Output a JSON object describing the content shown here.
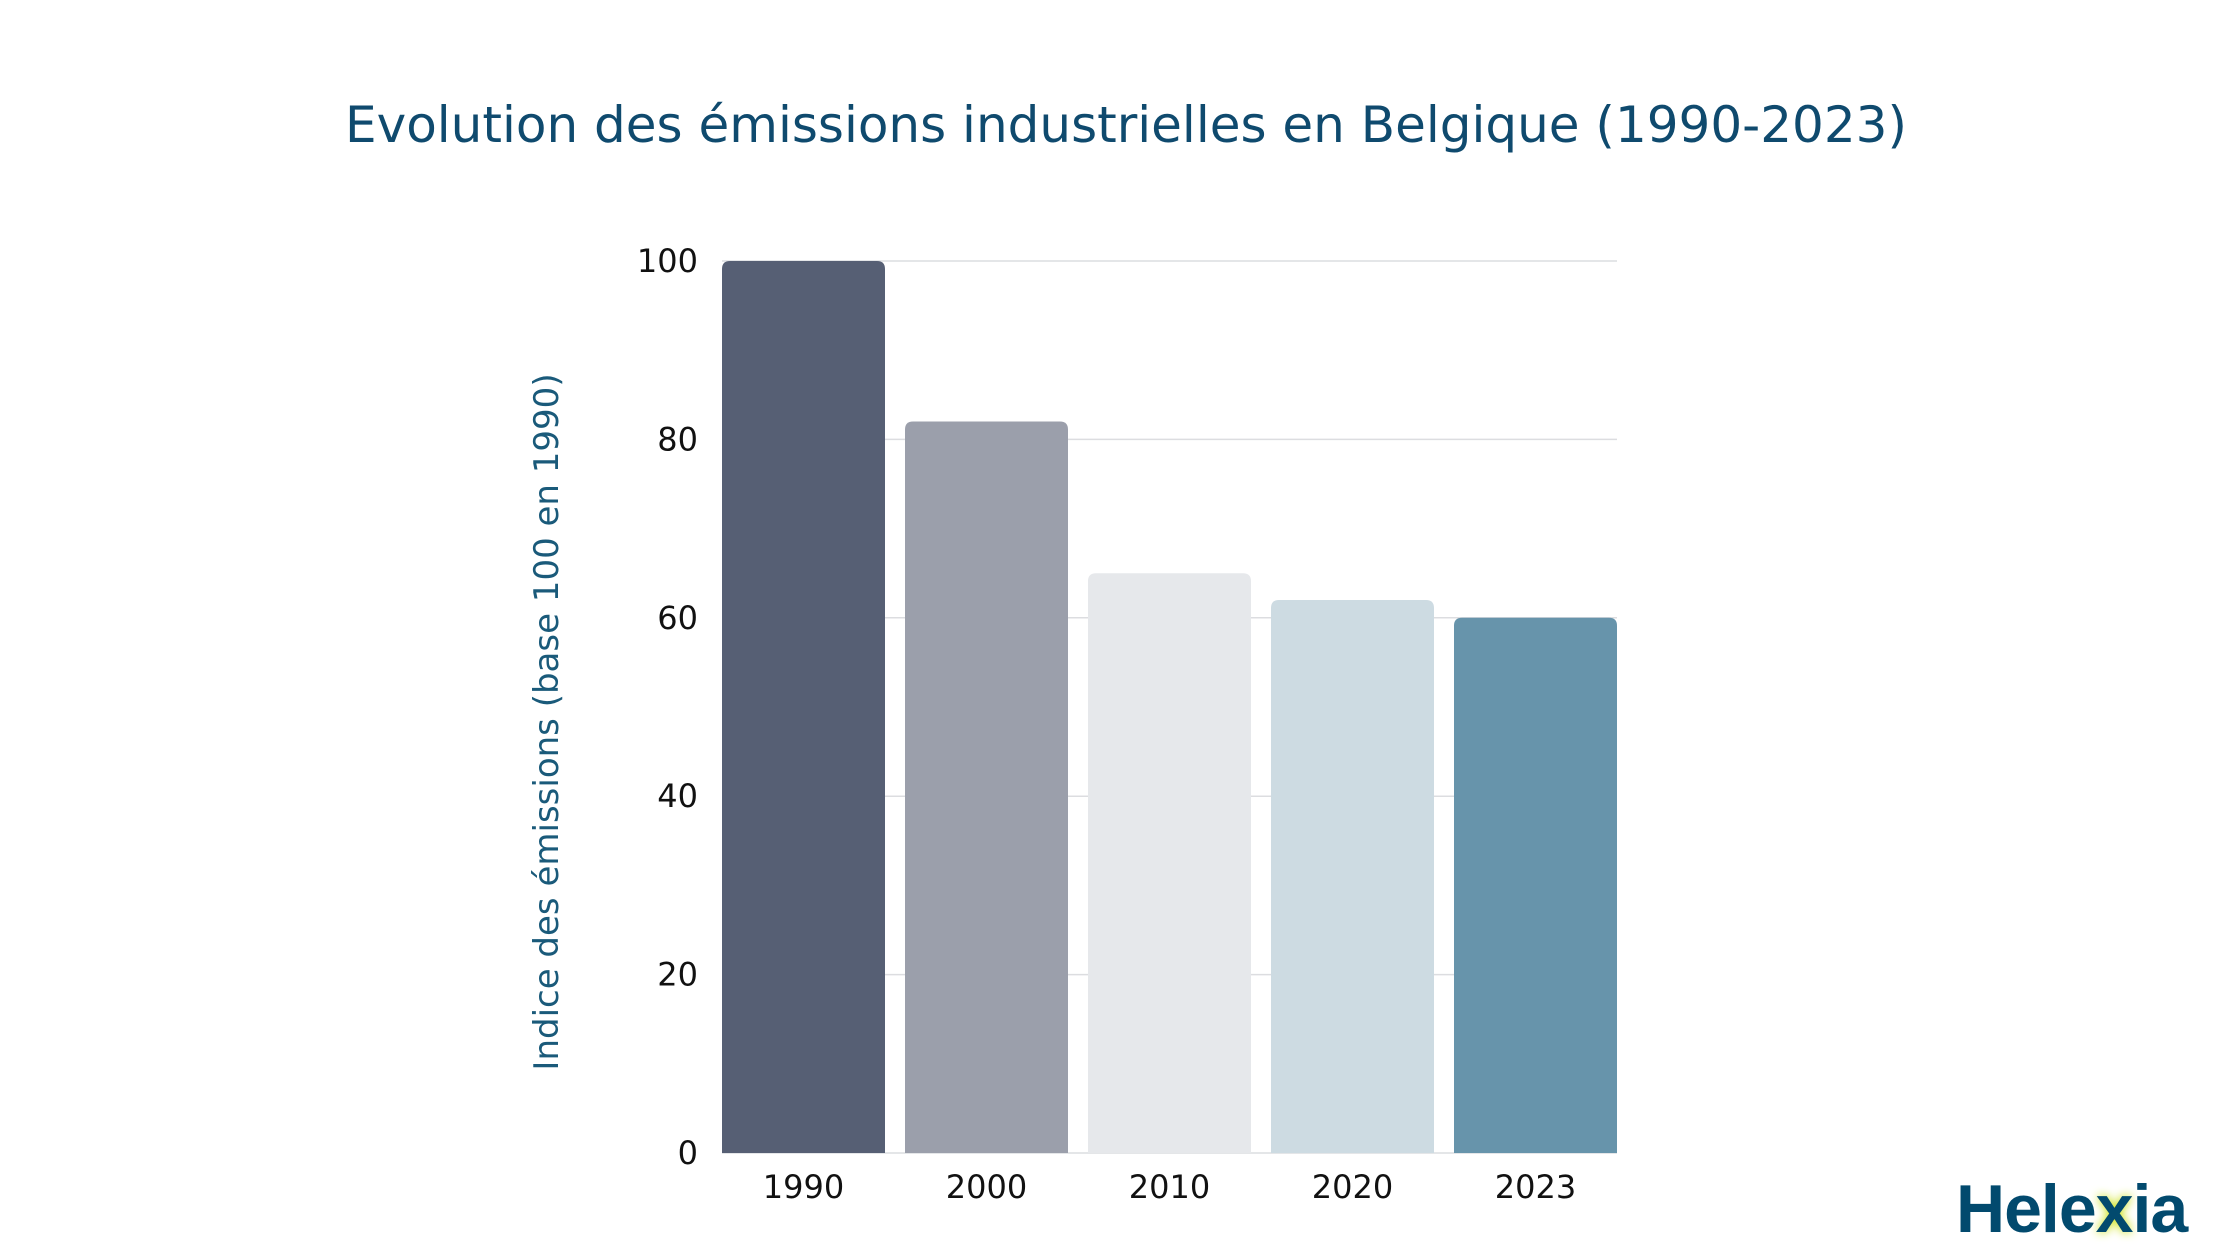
{
  "chart_data": {
    "type": "bar",
    "title": "Evolution des émissions industrielles en Belgique (1990-2023)",
    "xlabel": "",
    "ylabel": "Indice des émissions (base 100 en 1990)",
    "categories": [
      "1990",
      "2000",
      "2010",
      "2020",
      "2023"
    ],
    "values": [
      100,
      82,
      65,
      62,
      60
    ],
    "colors": [
      "#565f74",
      "#9b9fab",
      "#e6e8eb",
      "#cddbe2",
      "#6794ab"
    ],
    "ylim": [
      0,
      100
    ],
    "yticks": [
      0,
      20,
      40,
      60,
      80,
      100
    ],
    "grid": true
  },
  "logo": {
    "text": "Helexia",
    "before": "Hele",
    "x": "x",
    "after": "ia",
    "color": "#024a6e",
    "accent": "#c8e000"
  }
}
